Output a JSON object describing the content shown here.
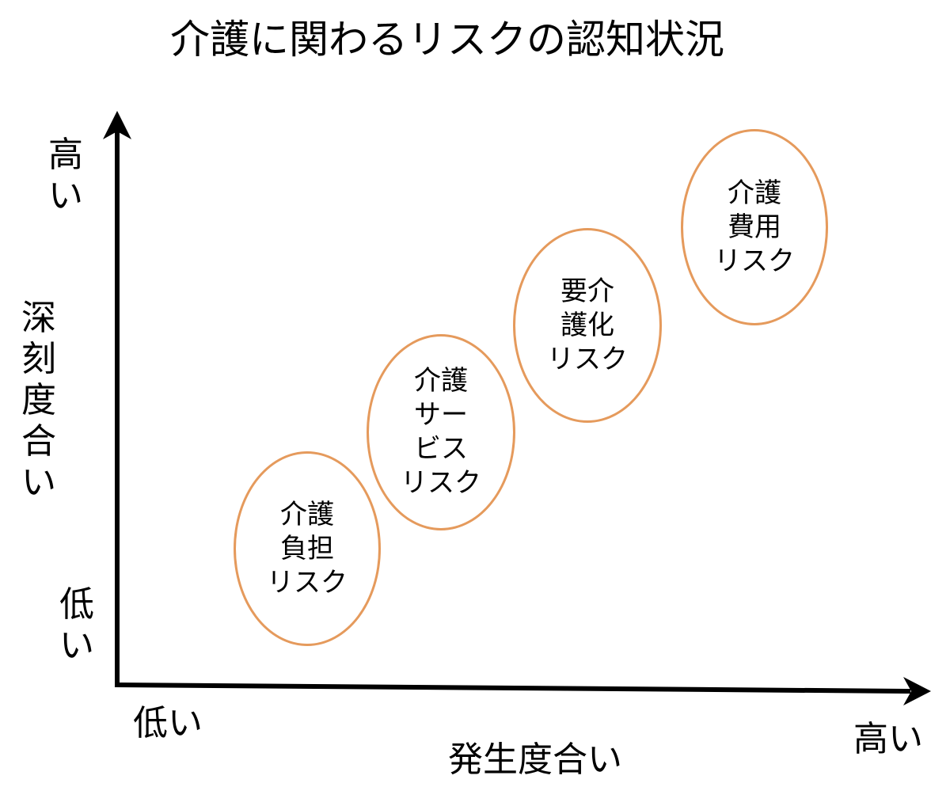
{
  "title": "介護に関わるリスクの認知状況",
  "colors": {
    "axis": "#000000",
    "bubble_border": "#e59a5c"
  },
  "y_axis": {
    "high_label": "高\nい",
    "label": "深\n刻\n度\n合\nい",
    "low_label": "低\nい"
  },
  "x_axis": {
    "low_label": "低い",
    "label": "発生度合い",
    "high_label": "高い"
  },
  "risks": [
    {
      "label": "介護\n負担\nリスク"
    },
    {
      "label": "介護\nサー\nビス\nリスク"
    },
    {
      "label": "要介\n護化\nリスク"
    },
    {
      "label": "介護\n費用\nリスク"
    }
  ]
}
